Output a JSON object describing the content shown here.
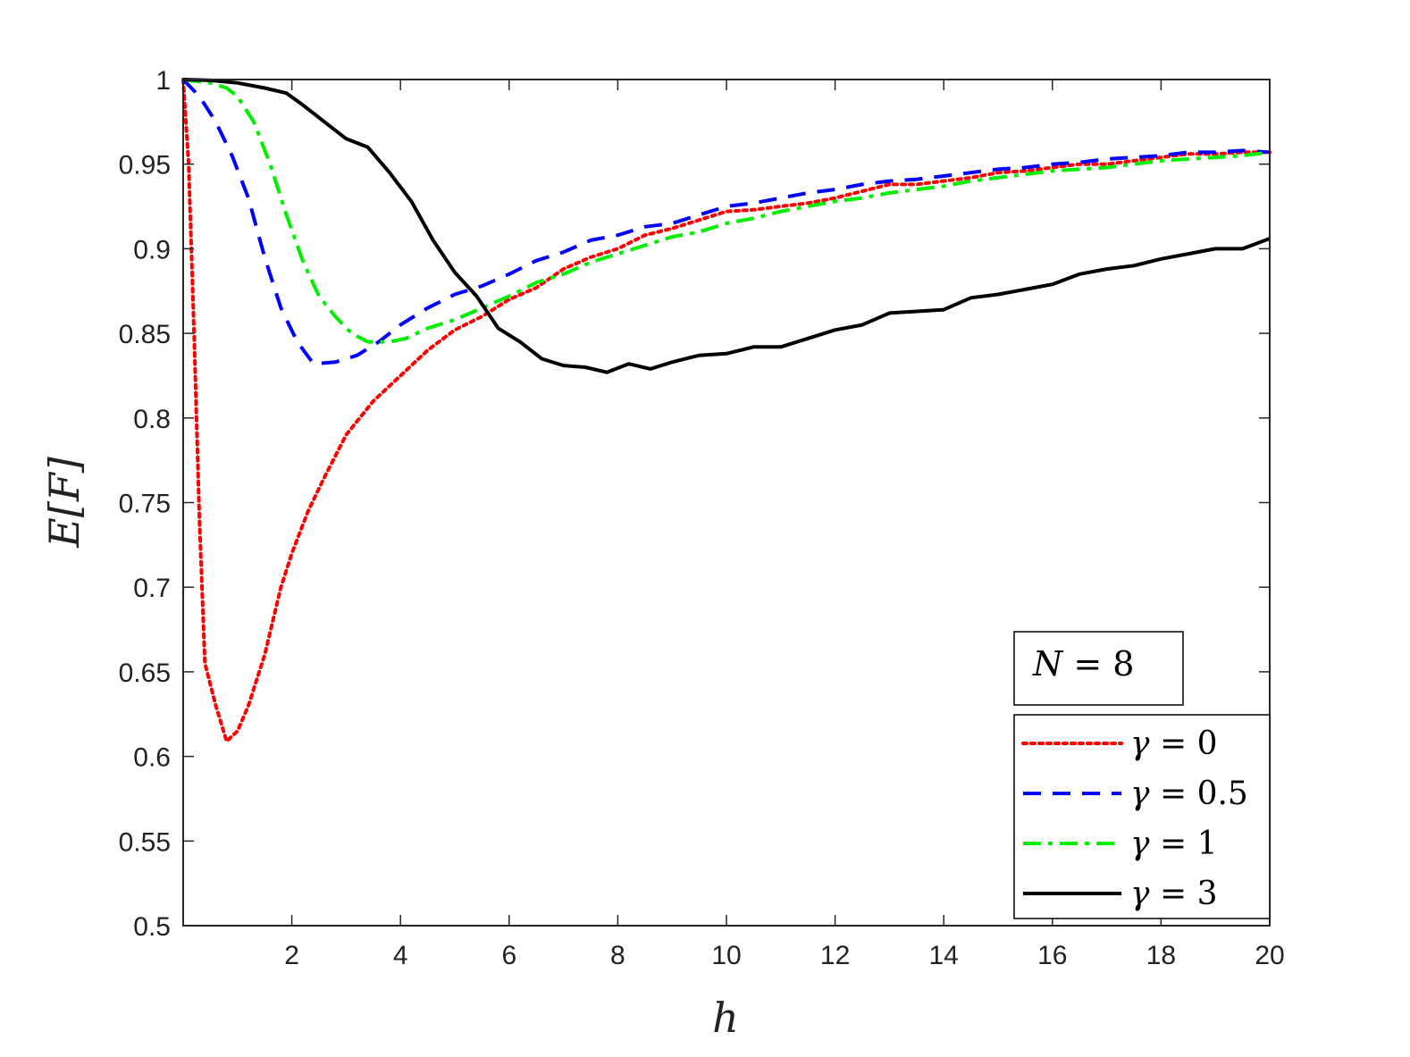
{
  "chart_data": {
    "type": "line",
    "xlabel": "h",
    "ylabel": "E[F]",
    "xlim": [
      0,
      20
    ],
    "ylim": [
      0.5,
      1
    ],
    "xticks": [
      2,
      4,
      6,
      8,
      10,
      12,
      14,
      16,
      18,
      20
    ],
    "xtick_labels": [
      "2",
      "4",
      "6",
      "8",
      "10",
      "12",
      "14",
      "16",
      "18",
      "20"
    ],
    "yticks": [
      0.5,
      0.55,
      0.6,
      0.65,
      0.7,
      0.75,
      0.8,
      0.85,
      0.9,
      0.95,
      1
    ],
    "ytick_labels": [
      "0.5",
      "0.55",
      "0.6",
      "0.65",
      "0.7",
      "0.75",
      "0.8",
      "0.85",
      "0.9",
      "0.95",
      "1"
    ],
    "grid": false,
    "legend_position": "bottom-right",
    "annotation": {
      "var": "N",
      "rel": " = ",
      "val": "8"
    },
    "series": [
      {
        "name": "γ = 0",
        "symbol": "γ",
        "rel": " = ",
        "val": "0",
        "color": "#ff0000",
        "dash": "dotted",
        "points": [
          [
            0,
            1
          ],
          [
            0.1,
            0.95
          ],
          [
            0.2,
            0.85
          ],
          [
            0.3,
            0.74
          ],
          [
            0.4,
            0.655
          ],
          [
            0.6,
            0.63
          ],
          [
            0.8,
            0.609
          ],
          [
            1.0,
            0.615
          ],
          [
            1.2,
            0.63
          ],
          [
            1.5,
            0.66
          ],
          [
            1.8,
            0.7
          ],
          [
            2.0,
            0.72
          ],
          [
            2.3,
            0.745
          ],
          [
            2.6,
            0.765
          ],
          [
            3.0,
            0.79
          ],
          [
            3.5,
            0.81
          ],
          [
            4.0,
            0.825
          ],
          [
            4.5,
            0.84
          ],
          [
            5.0,
            0.852
          ],
          [
            5.5,
            0.86
          ],
          [
            6.0,
            0.87
          ],
          [
            6.5,
            0.877
          ],
          [
            7.0,
            0.888
          ],
          [
            7.5,
            0.895
          ],
          [
            8.0,
            0.9
          ],
          [
            8.5,
            0.908
          ],
          [
            9.0,
            0.912
          ],
          [
            9.5,
            0.917
          ],
          [
            10,
            0.922
          ],
          [
            10.5,
            0.923
          ],
          [
            11,
            0.925
          ],
          [
            11.5,
            0.927
          ],
          [
            12,
            0.93
          ],
          [
            12.5,
            0.934
          ],
          [
            13,
            0.938
          ],
          [
            13.5,
            0.938
          ],
          [
            14,
            0.94
          ],
          [
            14.5,
            0.942
          ],
          [
            15,
            0.945
          ],
          [
            15.5,
            0.946
          ],
          [
            16,
            0.948
          ],
          [
            16.5,
            0.95
          ],
          [
            17,
            0.95
          ],
          [
            17.5,
            0.952
          ],
          [
            18,
            0.954
          ],
          [
            18.5,
            0.956
          ],
          [
            19,
            0.956
          ],
          [
            19.5,
            0.957
          ],
          [
            20,
            0.957
          ]
        ]
      },
      {
        "name": "γ = 0.5",
        "symbol": "γ",
        "rel": " = ",
        "val": "0.5",
        "color": "#0000ff",
        "dash": "dashed",
        "points": [
          [
            0,
            1
          ],
          [
            0.3,
            0.99
          ],
          [
            0.6,
            0.975
          ],
          [
            0.9,
            0.955
          ],
          [
            1.2,
            0.93
          ],
          [
            1.5,
            0.895
          ],
          [
            1.8,
            0.865
          ],
          [
            2.1,
            0.845
          ],
          [
            2.4,
            0.832
          ],
          [
            2.8,
            0.833
          ],
          [
            3.2,
            0.837
          ],
          [
            3.6,
            0.845
          ],
          [
            4.0,
            0.855
          ],
          [
            4.5,
            0.865
          ],
          [
            5.0,
            0.873
          ],
          [
            5.5,
            0.878
          ],
          [
            6.0,
            0.885
          ],
          [
            6.5,
            0.893
          ],
          [
            7.0,
            0.898
          ],
          [
            7.5,
            0.905
          ],
          [
            8.0,
            0.908
          ],
          [
            8.5,
            0.913
          ],
          [
            9.0,
            0.915
          ],
          [
            9.5,
            0.92
          ],
          [
            10,
            0.925
          ],
          [
            10.5,
            0.927
          ],
          [
            11,
            0.93
          ],
          [
            11.5,
            0.933
          ],
          [
            12,
            0.935
          ],
          [
            12.5,
            0.938
          ],
          [
            13,
            0.94
          ],
          [
            13.5,
            0.941
          ],
          [
            14,
            0.943
          ],
          [
            14.5,
            0.945
          ],
          [
            15,
            0.947
          ],
          [
            15.5,
            0.948
          ],
          [
            16,
            0.95
          ],
          [
            16.5,
            0.951
          ],
          [
            17,
            0.953
          ],
          [
            17.5,
            0.954
          ],
          [
            18,
            0.955
          ],
          [
            18.5,
            0.957
          ],
          [
            19,
            0.957
          ],
          [
            19.5,
            0.958
          ],
          [
            20,
            0.957
          ]
        ]
      },
      {
        "name": "γ = 1",
        "symbol": "γ",
        "rel": " = ",
        "val": "1",
        "color": "#00ee00",
        "dash": "dashdot",
        "points": [
          [
            0,
            1
          ],
          [
            0.5,
            0.998
          ],
          [
            0.8,
            0.995
          ],
          [
            1.0,
            0.99
          ],
          [
            1.3,
            0.975
          ],
          [
            1.6,
            0.95
          ],
          [
            1.9,
            0.92
          ],
          [
            2.2,
            0.893
          ],
          [
            2.5,
            0.872
          ],
          [
            2.8,
            0.86
          ],
          [
            3.1,
            0.85
          ],
          [
            3.4,
            0.845
          ],
          [
            3.8,
            0.845
          ],
          [
            4.1,
            0.847
          ],
          [
            4.5,
            0.853
          ],
          [
            5.0,
            0.858
          ],
          [
            5.5,
            0.865
          ],
          [
            6.0,
            0.872
          ],
          [
            6.5,
            0.88
          ],
          [
            7.0,
            0.885
          ],
          [
            7.5,
            0.892
          ],
          [
            8.0,
            0.897
          ],
          [
            8.5,
            0.902
          ],
          [
            9.0,
            0.907
          ],
          [
            9.5,
            0.91
          ],
          [
            10,
            0.915
          ],
          [
            10.5,
            0.918
          ],
          [
            11,
            0.922
          ],
          [
            11.5,
            0.925
          ],
          [
            12,
            0.928
          ],
          [
            12.5,
            0.93
          ],
          [
            13,
            0.933
          ],
          [
            13.5,
            0.935
          ],
          [
            14,
            0.937
          ],
          [
            14.5,
            0.94
          ],
          [
            15,
            0.942
          ],
          [
            15.5,
            0.944
          ],
          [
            16,
            0.946
          ],
          [
            16.5,
            0.947
          ],
          [
            17,
            0.948
          ],
          [
            17.5,
            0.95
          ],
          [
            18,
            0.952
          ],
          [
            18.5,
            0.953
          ],
          [
            19,
            0.954
          ],
          [
            19.5,
            0.955
          ],
          [
            20,
            0.957
          ]
        ]
      },
      {
        "name": "γ = 3",
        "symbol": "γ",
        "rel": " = ",
        "val": "3",
        "color": "#000000",
        "dash": "solid",
        "points": [
          [
            0,
            1
          ],
          [
            0.5,
            0.9995
          ],
          [
            1.0,
            0.998
          ],
          [
            1.5,
            0.995
          ],
          [
            1.9,
            0.992
          ],
          [
            2.2,
            0.985
          ],
          [
            2.6,
            0.975
          ],
          [
            3.0,
            0.965
          ],
          [
            3.4,
            0.96
          ],
          [
            3.8,
            0.945
          ],
          [
            4.2,
            0.928
          ],
          [
            4.6,
            0.905
          ],
          [
            5.0,
            0.886
          ],
          [
            5.4,
            0.872
          ],
          [
            5.8,
            0.853
          ],
          [
            6.2,
            0.845
          ],
          [
            6.6,
            0.835
          ],
          [
            7.0,
            0.831
          ],
          [
            7.4,
            0.83
          ],
          [
            7.8,
            0.827
          ],
          [
            8.2,
            0.832
          ],
          [
            8.6,
            0.829
          ],
          [
            9.0,
            0.833
          ],
          [
            9.5,
            0.837
          ],
          [
            10,
            0.838
          ],
          [
            10.5,
            0.842
          ],
          [
            11,
            0.842
          ],
          [
            11.5,
            0.847
          ],
          [
            12,
            0.852
          ],
          [
            12.5,
            0.855
          ],
          [
            13,
            0.862
          ],
          [
            13.5,
            0.863
          ],
          [
            14,
            0.864
          ],
          [
            14.5,
            0.871
          ],
          [
            15,
            0.873
          ],
          [
            15.5,
            0.876
          ],
          [
            16,
            0.879
          ],
          [
            16.5,
            0.885
          ],
          [
            17,
            0.888
          ],
          [
            17.5,
            0.89
          ],
          [
            18,
            0.894
          ],
          [
            18.5,
            0.897
          ],
          [
            19,
            0.9
          ],
          [
            19.5,
            0.9
          ],
          [
            20,
            0.906
          ]
        ]
      }
    ]
  }
}
